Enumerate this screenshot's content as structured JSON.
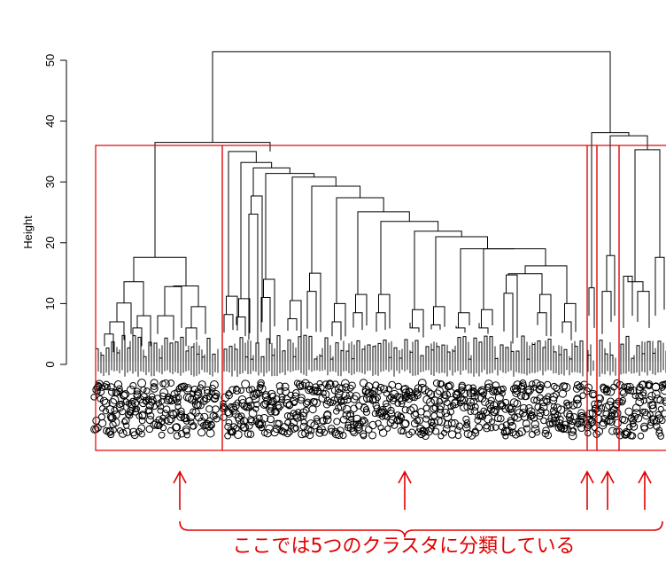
{
  "chart_data": {
    "type": "dendrogram",
    "ylabel": "Height",
    "y_ticks": [
      "0",
      "10",
      "20",
      "30",
      "40",
      "50"
    ],
    "ylim": [
      0,
      52
    ],
    "root_merge_height": 51.4,
    "major_merges": [
      {
        "height": 51.4,
        "joins": "left group + right group"
      },
      {
        "height": 36.5,
        "joins": "cluster 1 + cluster 2"
      },
      {
        "height": 38.1,
        "joins": "cluster 3 + (cluster 4 + cluster 5)"
      },
      {
        "height": 37.6,
        "joins": "cluster 4 + cluster 5"
      }
    ],
    "cut_height": 36,
    "clusters": [
      {
        "id": 1,
        "internal_merge_heights": [
          17.6,
          12.8,
          10.1,
          8.0,
          9.5
        ]
      },
      {
        "id": 2,
        "internal_merge_heights": [
          35.0,
          33.2,
          32.3,
          31.4,
          30.8,
          29.3,
          27.7,
          25.1,
          23.5,
          21.9,
          21.0,
          15.0,
          14.7,
          11.5
        ]
      },
      {
        "id": 3,
        "internal_merge_heights": [
          12.6
        ]
      },
      {
        "id": 4,
        "internal_merge_heights": [
          17.9
        ]
      },
      {
        "id": 5,
        "internal_merge_heights": [
          35.3,
          17.6,
          14.5
        ]
      }
    ],
    "cluster_count": 5,
    "cluster_box_color": "#e00000",
    "annotation": "ここでは5つのクラスタに分類している",
    "annotation_color": "#e00000"
  }
}
